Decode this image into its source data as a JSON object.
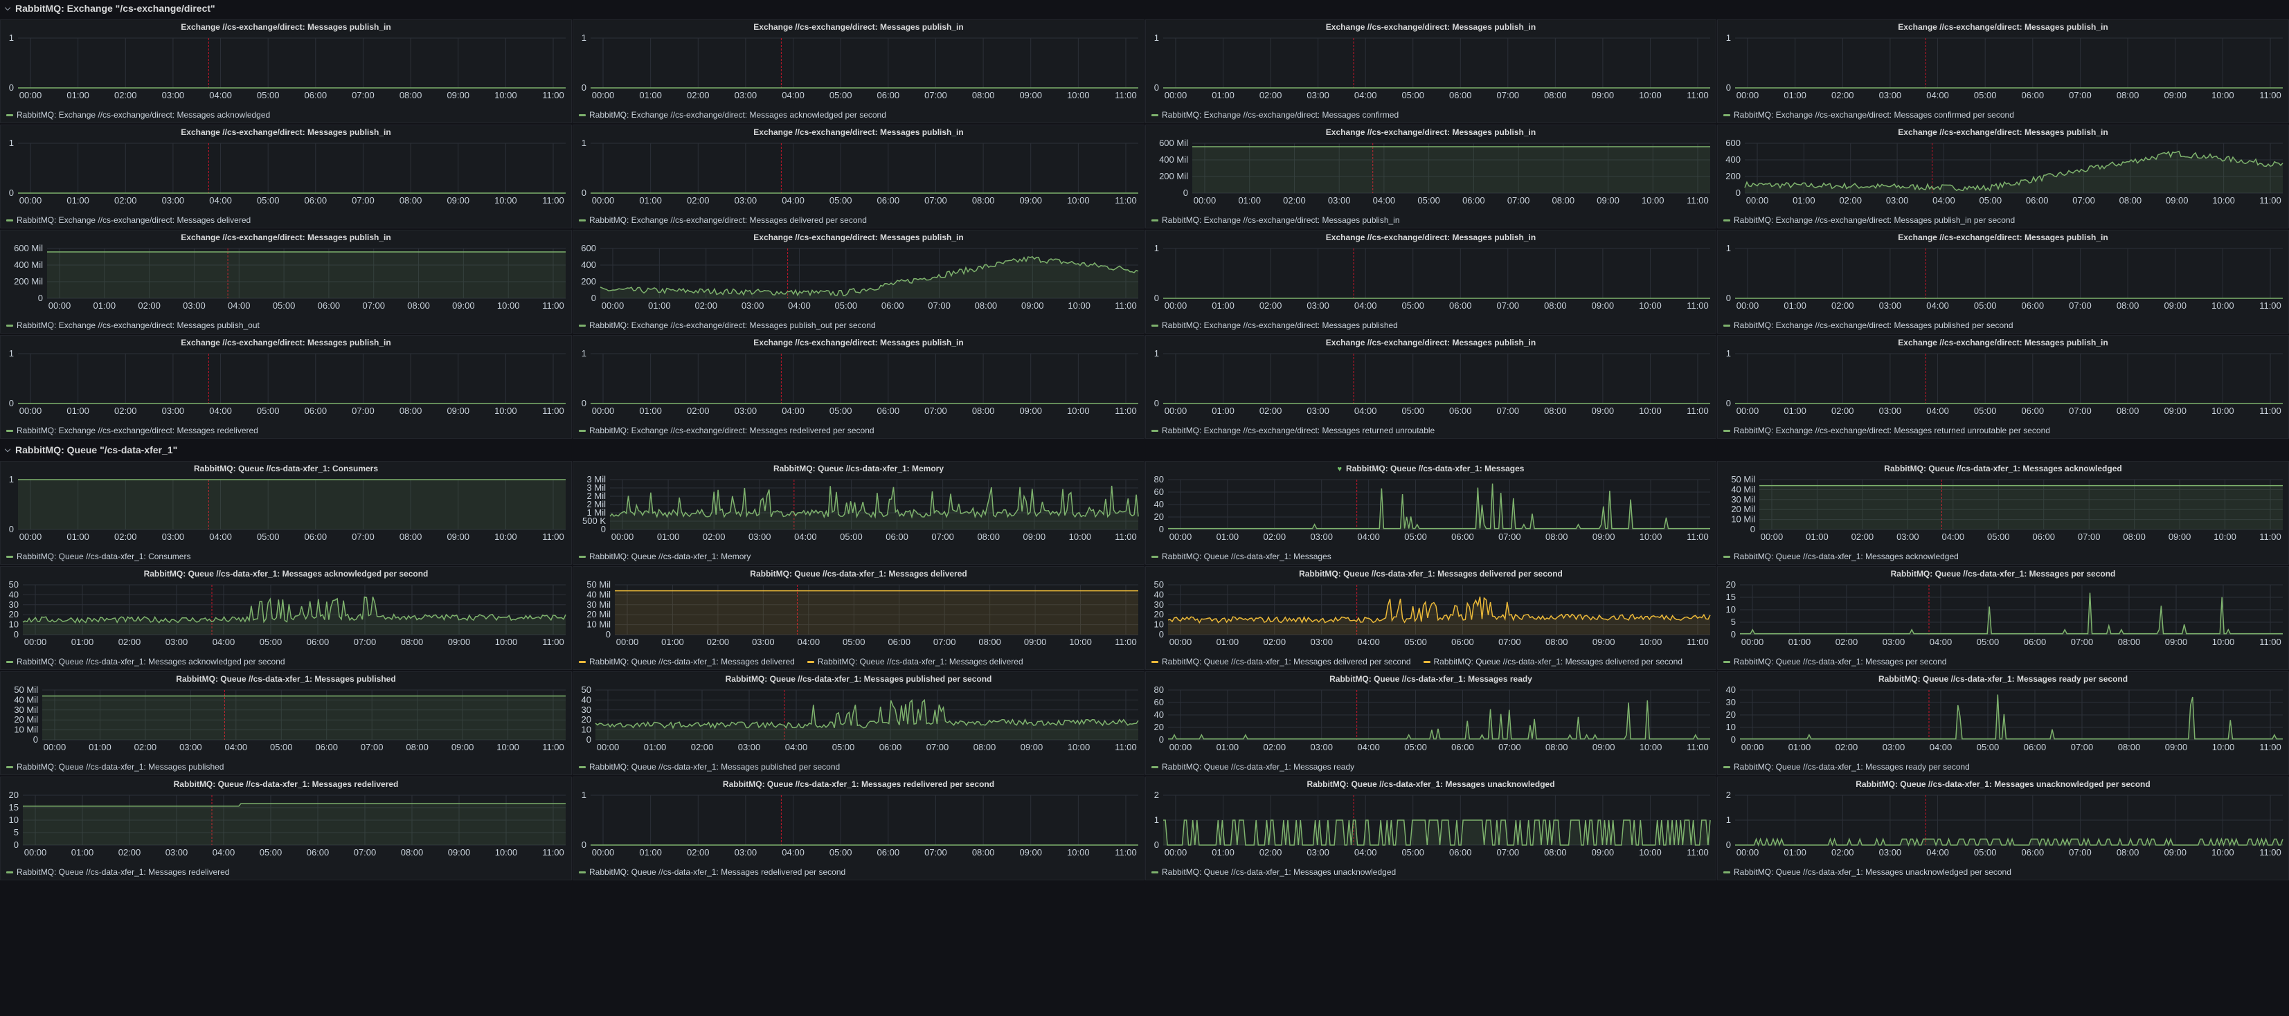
{
  "rows": [
    {
      "title": "RabbitMQ: Exchange \"/cs-exchange/direct\""
    },
    {
      "title": "RabbitMQ: Queue \"/cs-data-xfer_1\""
    }
  ],
  "colors": {
    "background": "#111217",
    "panel": "#181b1f",
    "green": "#7eb26d",
    "yellow": "#eab839",
    "annotation": "#c4162a",
    "grid": "#2c3038"
  },
  "icons": {
    "row_collapse": "chevron-down-icon",
    "health": "heart-icon"
  },
  "x_ticks": [
    "00:00",
    "01:00",
    "02:00",
    "03:00",
    "04:00",
    "05:00",
    "06:00",
    "07:00",
    "08:00",
    "09:00",
    "10:00",
    "11:00"
  ],
  "annotation_time": "03:45",
  "panels": [
    {
      "title": "Exchange //cs-exchange/direct: Messages publish_in",
      "legend": [
        "RabbitMQ: Exchange //cs-exchange/direct: Messages acknowledged"
      ],
      "y_ticks": [
        "0",
        "1"
      ],
      "pattern": "flat"
    },
    {
      "title": "Exchange //cs-exchange/direct: Messages publish_in",
      "legend": [
        "RabbitMQ: Exchange //cs-exchange/direct: Messages acknowledged per second"
      ],
      "y_ticks": [
        "0",
        "1"
      ],
      "pattern": "flat"
    },
    {
      "title": "Exchange //cs-exchange/direct: Messages publish_in",
      "legend": [
        "RabbitMQ: Exchange //cs-exchange/direct: Messages confirmed"
      ],
      "y_ticks": [
        "0",
        "1"
      ],
      "pattern": "flat"
    },
    {
      "title": "Exchange //cs-exchange/direct: Messages publish_in",
      "legend": [
        "RabbitMQ: Exchange //cs-exchange/direct: Messages confirmed per second"
      ],
      "y_ticks": [
        "0",
        "1"
      ],
      "pattern": "flat"
    },
    {
      "title": "Exchange //cs-exchange/direct: Messages publish_in",
      "legend": [
        "RabbitMQ: Exchange //cs-exchange/direct: Messages delivered"
      ],
      "y_ticks": [
        "0",
        "1"
      ],
      "pattern": "flat"
    },
    {
      "title": "Exchange //cs-exchange/direct: Messages publish_in",
      "legend": [
        "RabbitMQ: Exchange //cs-exchange/direct: Messages delivered per second"
      ],
      "y_ticks": [
        "0",
        "1"
      ],
      "pattern": "flat"
    },
    {
      "title": "Exchange //cs-exchange/direct: Messages publish_in",
      "legend": [
        "RabbitMQ: Exchange //cs-exchange/direct: Messages publish_in"
      ],
      "y_ticks": [
        "0",
        "200 Mil",
        "400 Mil",
        "600 Mil"
      ],
      "pattern": "high"
    },
    {
      "title": "Exchange //cs-exchange/direct: Messages publish_in",
      "legend": [
        "RabbitMQ: Exchange //cs-exchange/direct: Messages publish_in per second"
      ],
      "y_ticks": [
        "0",
        "200",
        "400",
        "600"
      ],
      "pattern": "rising"
    },
    {
      "title": "Exchange //cs-exchange/direct: Messages publish_in",
      "legend": [
        "RabbitMQ: Exchange //cs-exchange/direct: Messages publish_out"
      ],
      "y_ticks": [
        "0",
        "200 Mil",
        "400 Mil",
        "600 Mil"
      ],
      "pattern": "high"
    },
    {
      "title": "Exchange //cs-exchange/direct: Messages publish_in",
      "legend": [
        "RabbitMQ: Exchange //cs-exchange/direct: Messages publish_out per second"
      ],
      "y_ticks": [
        "0",
        "200",
        "400",
        "600"
      ],
      "pattern": "rising"
    },
    {
      "title": "Exchange //cs-exchange/direct: Messages publish_in",
      "legend": [
        "RabbitMQ: Exchange //cs-exchange/direct: Messages published"
      ],
      "y_ticks": [
        "0",
        "1"
      ],
      "pattern": "flat"
    },
    {
      "title": "Exchange //cs-exchange/direct: Messages publish_in",
      "legend": [
        "RabbitMQ: Exchange //cs-exchange/direct: Messages published per second"
      ],
      "y_ticks": [
        "0",
        "1"
      ],
      "pattern": "flat"
    },
    {
      "title": "Exchange //cs-exchange/direct: Messages publish_in",
      "legend": [
        "RabbitMQ: Exchange //cs-exchange/direct: Messages redelivered"
      ],
      "y_ticks": [
        "0",
        "1"
      ],
      "pattern": "flat"
    },
    {
      "title": "Exchange //cs-exchange/direct: Messages publish_in",
      "legend": [
        "RabbitMQ: Exchange //cs-exchange/direct: Messages redelivered per second"
      ],
      "y_ticks": [
        "0",
        "1"
      ],
      "pattern": "flat"
    },
    {
      "title": "Exchange //cs-exchange/direct: Messages publish_in",
      "legend": [
        "RabbitMQ: Exchange //cs-exchange/direct: Messages returned unroutable"
      ],
      "y_ticks": [
        "0",
        "1"
      ],
      "pattern": "flat"
    },
    {
      "title": "Exchange //cs-exchange/direct: Messages publish_in",
      "legend": [
        "RabbitMQ: Exchange //cs-exchange/direct: Messages returned unroutable per second"
      ],
      "y_ticks": [
        "0",
        "1"
      ],
      "pattern": "flat"
    },
    {
      "title": "RabbitMQ: Queue //cs-data-xfer_1: Consumers",
      "legend": [
        "RabbitMQ: Queue //cs-data-xfer_1: Consumers"
      ],
      "y_ticks": [
        "0",
        "1"
      ],
      "pattern": "one"
    },
    {
      "title": "RabbitMQ: Queue //cs-data-xfer_1: Memory",
      "legend": [
        "RabbitMQ: Queue //cs-data-xfer_1: Memory"
      ],
      "y_ticks": [
        "0",
        "500 K",
        "1 Mil",
        "2 Mil",
        "2 Mil",
        "3 Mil",
        "3 Mil"
      ],
      "pattern": "memory"
    },
    {
      "title": "RabbitMQ: Queue //cs-data-xfer_1: Messages",
      "legend": [
        "RabbitMQ: Queue //cs-data-xfer_1: Messages"
      ],
      "y_ticks": [
        "0",
        "20",
        "40",
        "60",
        "80"
      ],
      "pattern": "sparse80",
      "heart": true
    },
    {
      "title": "RabbitMQ: Queue //cs-data-xfer_1: Messages acknowledged",
      "legend": [
        "RabbitMQ: Queue //cs-data-xfer_1: Messages acknowledged"
      ],
      "y_ticks": [
        "0",
        "10 Mil",
        "20 Mil",
        "30 Mil",
        "40 Mil",
        "50 Mil"
      ],
      "pattern": "high45"
    },
    {
      "title": "RabbitMQ: Queue //cs-data-xfer_1: Messages acknowledged per second",
      "legend": [
        "RabbitMQ: Queue //cs-data-xfer_1: Messages acknowledged per second"
      ],
      "y_ticks": [
        "0",
        "10",
        "20",
        "30",
        "40",
        "50"
      ],
      "pattern": "busy"
    },
    {
      "title": "RabbitMQ: Queue //cs-data-xfer_1: Messages delivered",
      "legend": [
        "RabbitMQ: Queue //cs-data-xfer_1: Messages delivered",
        "RabbitMQ: Queue //cs-data-xfer_1: Messages delivered"
      ],
      "y_ticks": [
        "0",
        "10 Mil",
        "20 Mil",
        "30 Mil",
        "40 Mil",
        "50 Mil"
      ],
      "pattern": "high45y"
    },
    {
      "title": "RabbitMQ: Queue //cs-data-xfer_1: Messages delivered per second",
      "legend": [
        "RabbitMQ: Queue //cs-data-xfer_1: Messages delivered per second",
        "RabbitMQ: Queue //cs-data-xfer_1: Messages delivered per second"
      ],
      "y_ticks": [
        "0",
        "10",
        "20",
        "30",
        "40",
        "50"
      ],
      "pattern": "busyy"
    },
    {
      "title": "RabbitMQ: Queue //cs-data-xfer_1: Messages per second",
      "legend": [
        "RabbitMQ: Queue //cs-data-xfer_1: Messages per second"
      ],
      "y_ticks": [
        "0",
        "5",
        "10",
        "15",
        "20"
      ],
      "pattern": "sparse20"
    },
    {
      "title": "RabbitMQ: Queue //cs-data-xfer_1: Messages published",
      "legend": [
        "RabbitMQ: Queue //cs-data-xfer_1: Messages published"
      ],
      "y_ticks": [
        "0",
        "10 Mil",
        "20 Mil",
        "30 Mil",
        "40 Mil",
        "50 Mil"
      ],
      "pattern": "high45"
    },
    {
      "title": "RabbitMQ: Queue //cs-data-xfer_1: Messages published per second",
      "legend": [
        "RabbitMQ: Queue //cs-data-xfer_1: Messages published per second"
      ],
      "y_ticks": [
        "0",
        "10",
        "20",
        "30",
        "40",
        "50"
      ],
      "pattern": "busy"
    },
    {
      "title": "RabbitMQ: Queue //cs-data-xfer_1: Messages ready",
      "legend": [
        "RabbitMQ: Queue //cs-data-xfer_1: Messages ready"
      ],
      "y_ticks": [
        "0",
        "20",
        "40",
        "60",
        "80"
      ],
      "pattern": "sparse80"
    },
    {
      "title": "RabbitMQ: Queue //cs-data-xfer_1: Messages ready per second",
      "legend": [
        "RabbitMQ: Queue //cs-data-xfer_1: Messages ready per second"
      ],
      "y_ticks": [
        "0",
        "10",
        "20",
        "30",
        "40"
      ],
      "pattern": "sparse40"
    },
    {
      "title": "RabbitMQ: Queue //cs-data-xfer_1: Messages redelivered",
      "legend": [
        "RabbitMQ: Queue //cs-data-xfer_1: Messages redelivered"
      ],
      "y_ticks": [
        "0",
        "5",
        "10",
        "15",
        "20"
      ],
      "pattern": "step"
    },
    {
      "title": "RabbitMQ: Queue //cs-data-xfer_1: Messages redelivered per second",
      "legend": [
        "RabbitMQ: Queue //cs-data-xfer_1: Messages redelivered per second"
      ],
      "y_ticks": [
        "0",
        "1"
      ],
      "pattern": "flat"
    },
    {
      "title": "RabbitMQ: Queue //cs-data-xfer_1: Messages unacknowledged",
      "legend": [
        "RabbitMQ: Queue //cs-data-xfer_1: Messages unacknowledged"
      ],
      "y_ticks": [
        "0",
        "1",
        "2"
      ],
      "pattern": "binary"
    },
    {
      "title": "RabbitMQ: Queue //cs-data-xfer_1: Messages unacknowledged per second",
      "legend": [
        "RabbitMQ: Queue //cs-data-xfer_1: Messages unacknowledged per second"
      ],
      "y_ticks": [
        "0",
        "1",
        "2"
      ],
      "pattern": "binarysmall"
    }
  ]
}
